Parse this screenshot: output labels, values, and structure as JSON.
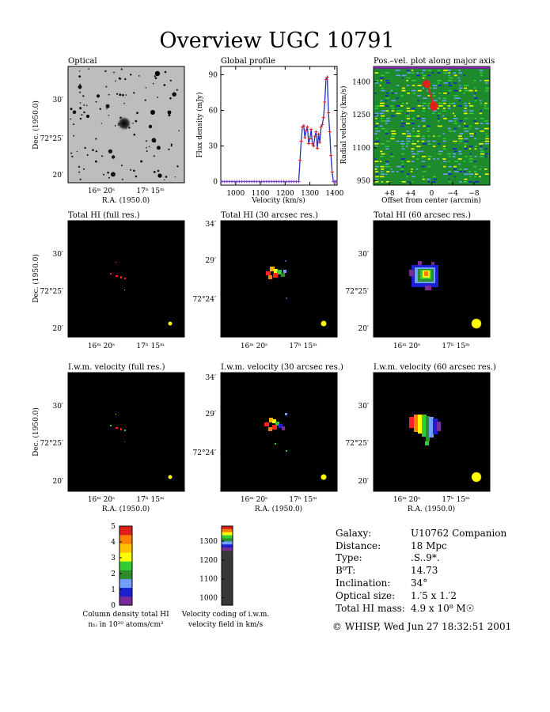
{
  "title": "Overview UGC 10791",
  "panels": {
    "optical": {
      "title": "Optical"
    },
    "global": {
      "title": "Global profile"
    },
    "pv": {
      "title": "Pos.–vel. plot along major axis"
    },
    "hi_full": {
      "title": "Total HI (full res.)"
    },
    "hi_30": {
      "title": "Total HI (30 arcsec res.)"
    },
    "hi_60": {
      "title": "Total HI (60 arcsec res.)"
    },
    "vel_full": {
      "title": "I.w.m. velocity (full res.)"
    },
    "vel_30": {
      "title": "I.w.m. velocity (30 arcsec res.)"
    },
    "vel_60": {
      "title": "I.w.m. velocity (60 arcsec res.)"
    }
  },
  "labels": {
    "ra": "R.A. (1950.0)",
    "dec": "Dec. (1950.0)",
    "ra_ticks": [
      "16ᵐ 20ˢ",
      "17ʰ 15ᵐ"
    ],
    "dec_ticks_a": [
      "30′",
      "72°25′",
      "20′"
    ],
    "dec_ticks_b": [
      "34′",
      "29′",
      "72°24′"
    ],
    "flux_ylabel": "Flux density (mJy)",
    "velocity_xlabel": "Velocity (km/s)",
    "radial_ylabel": "Radial velocity (km/s)",
    "offset_xlabel": "Offset from center (arcmin)"
  },
  "colorbars": {
    "column": {
      "ticks": [
        "0",
        "1",
        "2",
        "3",
        "4",
        "5"
      ],
      "colors": [
        "#7b2a9a",
        "#1c20d0",
        "#6fa0ff",
        "#2e8b2e",
        "#33cc33",
        "#ffff00",
        "#ffc100",
        "#ff7f00",
        "#e0201b"
      ],
      "caption1": "Column density total HI",
      "caption2": "nₕᵢ in 10²⁰ atoms/cm²"
    },
    "velocity": {
      "ticks": [
        "1000",
        "1100",
        "1200",
        "1300"
      ],
      "caption1": "Velocity coding of i.w.m.",
      "caption2": "velocity field in km/s"
    }
  },
  "info": {
    "rows": [
      {
        "label": "Galaxy:",
        "value": "U10762 Companion"
      },
      {
        "label": "Distance:",
        "value": "18 Mpc"
      },
      {
        "label": "Type:",
        "value": ".S..9*."
      },
      {
        "label": "B⁰T:",
        "value": "14.73"
      },
      {
        "label": "Inclination:",
        "value": "34°"
      },
      {
        "label": "Optical size:",
        "value": "1.′5 x 1.′2"
      },
      {
        "label": "Total HI mass:",
        "value": "4.9 x 10⁸ M☉"
      }
    ],
    "footer": "© WHISP, Wed Jun 27 18:32:51 2001"
  },
  "chart_data": [
    {
      "type": "line",
      "title": "Global profile",
      "xlabel": "Velocity (km/s)",
      "ylabel": "Flux density (mJy)",
      "xlim": [
        940,
        1410
      ],
      "ylim": [
        -3,
        97
      ],
      "xticks": [
        1000,
        1100,
        1200,
        1300,
        1400
      ],
      "yticks": [
        0,
        30,
        60,
        90
      ],
      "x": [
        945,
        955,
        965,
        975,
        985,
        995,
        1005,
        1015,
        1025,
        1035,
        1045,
        1055,
        1065,
        1075,
        1085,
        1095,
        1105,
        1115,
        1125,
        1135,
        1145,
        1155,
        1165,
        1175,
        1185,
        1195,
        1205,
        1215,
        1225,
        1235,
        1245,
        1255,
        1260,
        1265,
        1270,
        1275,
        1280,
        1285,
        1290,
        1295,
        1300,
        1305,
        1310,
        1315,
        1320,
        1325,
        1330,
        1335,
        1340,
        1345,
        1350,
        1355,
        1360,
        1365,
        1370,
        1375,
        1380,
        1385,
        1390,
        1395,
        1400,
        1405
      ],
      "y": [
        0,
        0,
        0,
        0,
        0,
        0,
        0,
        0,
        0,
        0,
        0,
        0,
        0,
        0,
        0,
        0,
        0,
        0,
        0,
        0,
        0,
        0,
        0,
        0,
        0,
        0,
        0,
        0,
        0,
        0,
        0,
        0,
        18,
        34,
        46,
        47,
        37,
        43,
        46,
        32,
        36,
        44,
        32,
        30,
        38,
        42,
        28,
        40,
        33,
        46,
        48,
        54,
        67,
        86,
        88,
        58,
        42,
        22,
        8,
        0,
        0,
        0
      ]
    },
    {
      "type": "heatmap",
      "title": "Pos.–vel. plot along major axis",
      "xlabel": "Offset from center (arcmin)",
      "ylabel": "Radial velocity (km/s)",
      "xlim": [
        11,
        -11
      ],
      "ylim": [
        930,
        1470
      ],
      "xticks": [
        "+8",
        "+4",
        "0",
        "−4",
        "−8"
      ],
      "yticks": [
        950,
        1100,
        1250,
        1400
      ]
    }
  ]
}
